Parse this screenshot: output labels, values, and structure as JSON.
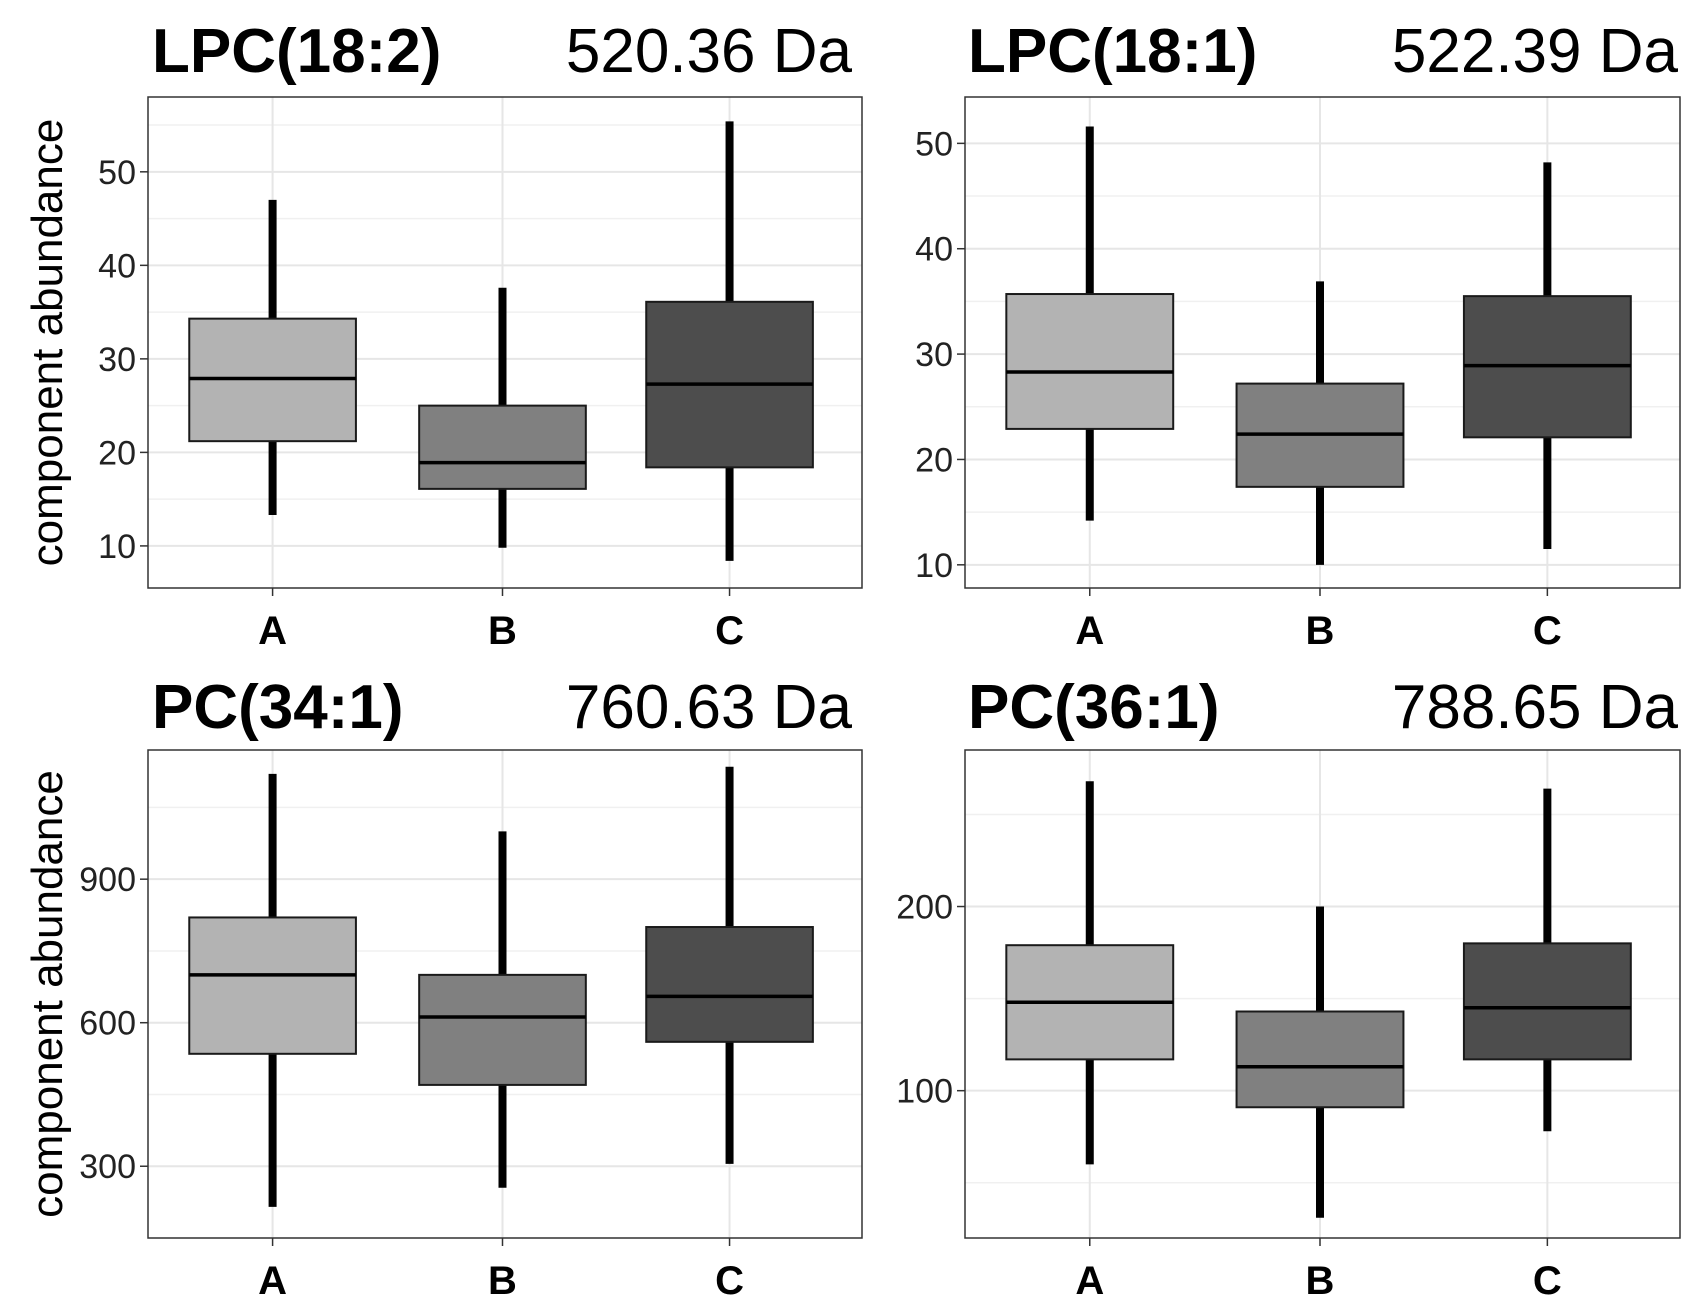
{
  "chart_data": [
    {
      "type": "box",
      "panel": "top-left",
      "title": "LPC(18:2)",
      "mass_label": "520.36 Da",
      "ylabel": "component abundance",
      "ylim": [
        5.5,
        58
      ],
      "yticks": [
        10,
        20,
        30,
        40,
        50
      ],
      "ytick_labels": [
        "10",
        "20",
        "30",
        "40",
        "50"
      ],
      "categories": [
        "A",
        "B",
        "C"
      ],
      "series": [
        {
          "name": "A",
          "color": "#b3b3b3",
          "whisker_low": 13.3,
          "q1": 21.2,
          "median": 27.9,
          "q3": 34.3,
          "whisker_high": 47.0
        },
        {
          "name": "B",
          "color": "#808080",
          "whisker_low": 9.8,
          "q1": 16.1,
          "median": 18.9,
          "q3": 25.0,
          "whisker_high": 37.6
        },
        {
          "name": "C",
          "color": "#4d4d4d",
          "whisker_low": 8.4,
          "q1": 18.4,
          "median": 27.3,
          "q3": 36.1,
          "whisker_high": 55.4
        }
      ]
    },
    {
      "type": "box",
      "panel": "top-right",
      "title": "LPC(18:1)",
      "mass_label": "522.39 Da",
      "ylabel": "",
      "ylim": [
        7.8,
        54.4
      ],
      "yticks": [
        10,
        20,
        30,
        40,
        50
      ],
      "ytick_labels": [
        "10",
        "20",
        "30",
        "40",
        "50"
      ],
      "categories": [
        "A",
        "B",
        "C"
      ],
      "series": [
        {
          "name": "A",
          "color": "#b3b3b3",
          "whisker_low": 14.2,
          "q1": 22.9,
          "median": 28.3,
          "q3": 35.7,
          "whisker_high": 51.6
        },
        {
          "name": "B",
          "color": "#808080",
          "whisker_low": 10.0,
          "q1": 17.4,
          "median": 22.4,
          "q3": 27.2,
          "whisker_high": 36.9
        },
        {
          "name": "C",
          "color": "#4d4d4d",
          "whisker_low": 11.5,
          "q1": 22.1,
          "median": 28.9,
          "q3": 35.5,
          "whisker_high": 48.2
        }
      ]
    },
    {
      "type": "box",
      "panel": "bottom-left",
      "title": "PC(34:1)",
      "mass_label": "760.63 Da",
      "ylabel": "component abundance",
      "ylim": [
        150,
        1170
      ],
      "yticks": [
        300,
        600,
        900
      ],
      "ytick_labels": [
        "300",
        "600",
        "900"
      ],
      "categories": [
        "A",
        "B",
        "C"
      ],
      "series": [
        {
          "name": "A",
          "color": "#b3b3b3",
          "whisker_low": 215,
          "q1": 535,
          "median": 700,
          "q3": 820,
          "whisker_high": 1120
        },
        {
          "name": "B",
          "color": "#808080",
          "whisker_low": 255,
          "q1": 470,
          "median": 612,
          "q3": 700,
          "whisker_high": 1000
        },
        {
          "name": "C",
          "color": "#4d4d4d",
          "whisker_low": 305,
          "q1": 560,
          "median": 655,
          "q3": 800,
          "whisker_high": 1135
        }
      ]
    },
    {
      "type": "box",
      "panel": "bottom-right",
      "title": "PC(36:1)",
      "mass_label": "788.65 Da",
      "ylabel": "",
      "ylim": [
        20,
        285
      ],
      "yticks": [
        100,
        200
      ],
      "ytick_labels": [
        "100",
        "200"
      ],
      "categories": [
        "A",
        "B",
        "C"
      ],
      "series": [
        {
          "name": "A",
          "color": "#b3b3b3",
          "whisker_low": 60,
          "q1": 117,
          "median": 148,
          "q3": 179,
          "whisker_high": 268
        },
        {
          "name": "B",
          "color": "#808080",
          "whisker_low": 31,
          "q1": 91,
          "median": 113,
          "q3": 143,
          "whisker_high": 200
        },
        {
          "name": "C",
          "color": "#4d4d4d",
          "whisker_low": 78,
          "q1": 117,
          "median": 145,
          "q3": 180,
          "whisker_high": 264
        }
      ]
    }
  ]
}
